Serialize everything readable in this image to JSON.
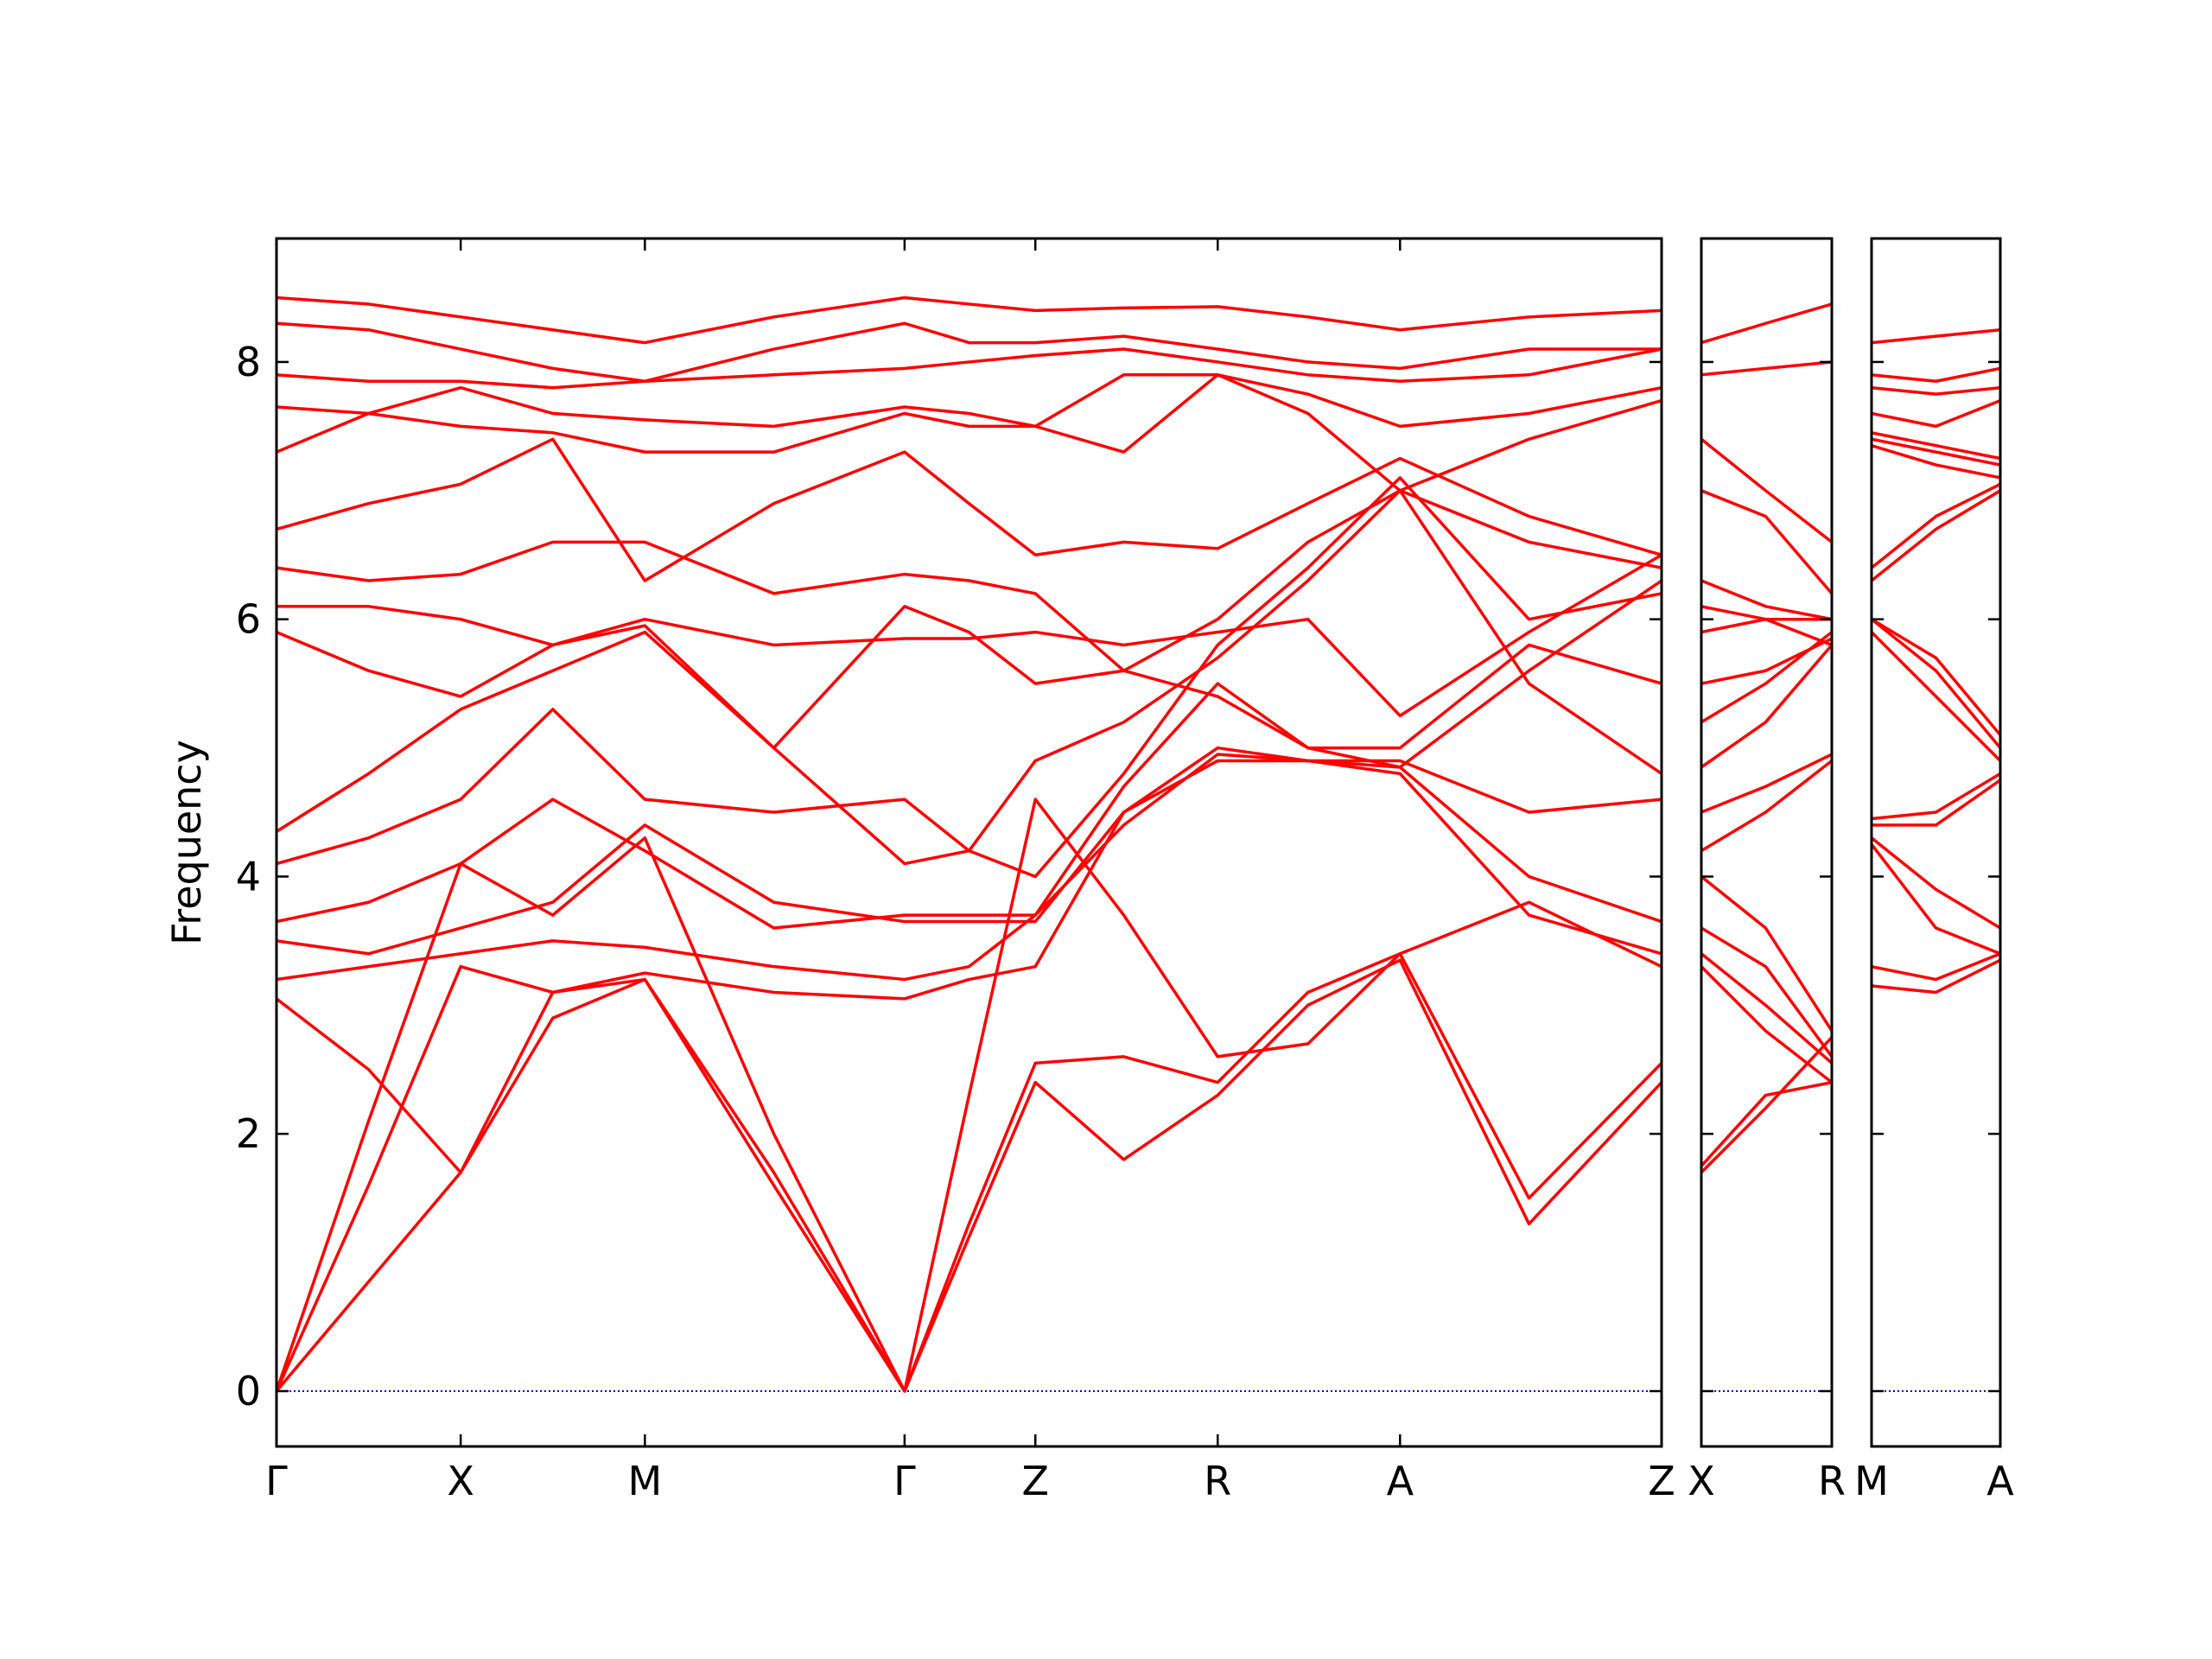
{
  "chart_data": [
    {
      "type": "line",
      "ylabel": "Frequency",
      "color": "#ff0000",
      "ylim": [
        -0.43,
        8.96
      ],
      "yticks": [
        0,
        2,
        4,
        6,
        8
      ],
      "ytick_labels": true,
      "xlim": [
        0,
        7.52
      ],
      "xticks": [
        {
          "value": 0,
          "label": "Γ"
        },
        {
          "value": 1.0,
          "label": "X"
        },
        {
          "value": 2.0,
          "label": "M"
        },
        {
          "value": 3.41,
          "label": "Γ"
        },
        {
          "value": 4.12,
          "label": "Z"
        },
        {
          "value": 5.11,
          "label": "R"
        },
        {
          "value": 6.1,
          "label": "A"
        },
        {
          "value": 7.52,
          "label": "Z"
        }
      ],
      "hline": {
        "value": 0,
        "color": "#0000cc"
      },
      "x": [
        0,
        0.5,
        1,
        1.5,
        2,
        2.7,
        3.41,
        3.76,
        4.12,
        4.6,
        5.11,
        5.6,
        6.1,
        6.8,
        7.52
      ],
      "series": [
        {
          "values": [
            0,
            0.85,
            1.7,
            2.9,
            3.2,
            1.6,
            0,
            1.2,
            2.4,
            1.8,
            2.3,
            3.0,
            3.35,
            1.3,
            2.4
          ]
        },
        {
          "values": [
            0,
            1.6,
            3.3,
            3.1,
            3.2,
            1.7,
            0,
            1.3,
            2.55,
            2.6,
            2.4,
            3.1,
            3.4,
            1.5,
            2.55
          ]
        },
        {
          "values": [
            0,
            2.1,
            4.1,
            3.7,
            4.3,
            2.0,
            0,
            2.3,
            4.6,
            3.7,
            2.6,
            2.7,
            3.4,
            3.8,
            3.3
          ]
        },
        {
          "values": [
            3.05,
            2.5,
            1.7,
            3.1,
            3.25,
            3.1,
            3.05,
            3.2,
            3.3,
            4.5,
            4.9,
            4.9,
            4.8,
            3.7,
            3.4
          ]
        },
        {
          "values": [
            3.2,
            3.3,
            3.4,
            3.5,
            3.45,
            3.3,
            3.2,
            3.3,
            3.7,
            4.4,
            4.95,
            4.9,
            4.85,
            4.0,
            3.65
          ]
        },
        {
          "values": [
            3.5,
            3.4,
            3.6,
            3.8,
            4.4,
            3.8,
            3.65,
            3.65,
            3.65,
            4.5,
            5.0,
            4.9,
            4.9,
            4.5,
            4.6
          ]
        },
        {
          "values": [
            3.65,
            3.8,
            4.1,
            4.6,
            4.2,
            3.6,
            3.7,
            3.7,
            3.7,
            4.7,
            5.5,
            5.0,
            5.0,
            5.8,
            5.5
          ]
        },
        {
          "values": [
            4.1,
            4.3,
            4.6,
            5.3,
            4.6,
            4.5,
            4.6,
            4.2,
            4.9,
            5.2,
            5.7,
            6.3,
            7.0,
            5.5,
            4.8
          ]
        },
        {
          "values": [
            4.35,
            4.8,
            5.3,
            5.6,
            5.9,
            5.0,
            4.1,
            4.2,
            4.0,
            4.8,
            5.8,
            6.4,
            7.1,
            6.0,
            6.2
          ]
        },
        {
          "values": [
            5.9,
            5.6,
            5.4,
            5.8,
            6.0,
            5.8,
            5.85,
            5.85,
            5.9,
            5.8,
            5.9,
            6.0,
            5.25,
            5.9,
            6.5
          ]
        },
        {
          "values": [
            6.1,
            6.1,
            6.0,
            5.8,
            5.95,
            5.0,
            6.1,
            5.9,
            5.5,
            5.6,
            5.4,
            5.0,
            4.85,
            5.6,
            6.3
          ]
        },
        {
          "values": [
            6.4,
            6.3,
            6.35,
            6.6,
            6.6,
            6.2,
            6.35,
            6.3,
            6.2,
            5.6,
            6.0,
            6.6,
            7.0,
            6.6,
            6.4
          ]
        },
        {
          "values": [
            6.7,
            6.9,
            7.05,
            7.4,
            6.3,
            6.9,
            7.3,
            6.9,
            6.5,
            6.6,
            6.55,
            6.9,
            7.25,
            6.8,
            6.5
          ]
        },
        {
          "values": [
            7.3,
            7.6,
            7.5,
            7.45,
            7.3,
            7.3,
            7.6,
            7.5,
            7.5,
            7.3,
            7.9,
            7.6,
            7.0,
            7.4,
            7.7
          ]
        },
        {
          "values": [
            7.65,
            7.6,
            7.8,
            7.6,
            7.55,
            7.5,
            7.65,
            7.6,
            7.5,
            7.9,
            7.9,
            7.75,
            7.5,
            7.6,
            7.8
          ]
        },
        {
          "values": [
            7.9,
            7.85,
            7.85,
            7.8,
            7.85,
            7.9,
            7.95,
            8.0,
            8.05,
            8.1,
            8.0,
            7.9,
            7.85,
            7.9,
            8.1
          ]
        },
        {
          "values": [
            8.3,
            8.25,
            8.1,
            7.95,
            7.85,
            8.1,
            8.3,
            8.15,
            8.15,
            8.2,
            8.1,
            8.0,
            7.95,
            8.1,
            8.1
          ]
        },
        {
          "values": [
            8.5,
            8.45,
            8.35,
            8.25,
            8.15,
            8.35,
            8.5,
            8.45,
            8.4,
            8.42,
            8.43,
            8.35,
            8.25,
            8.35,
            8.4
          ]
        }
      ]
    },
    {
      "type": "line",
      "color": "#ff0000",
      "ylim": [
        -0.43,
        8.96
      ],
      "yticks": [
        0,
        2,
        4,
        6,
        8
      ],
      "ytick_labels": false,
      "xlim": [
        0,
        0.71
      ],
      "xticks": [
        {
          "value": 0,
          "label": "X"
        },
        {
          "value": 0.71,
          "label": "R"
        }
      ],
      "hline": {
        "value": 0,
        "color": "#0000cc"
      },
      "x": [
        0,
        0.35,
        0.71
      ],
      "series": [
        {
          "values": [
            1.7,
            2.2,
            2.75
          ]
        },
        {
          "values": [
            1.75,
            2.3,
            2.4
          ]
        },
        {
          "values": [
            3.3,
            2.8,
            2.4
          ]
        },
        {
          "values": [
            3.4,
            3.0,
            2.55
          ]
        },
        {
          "values": [
            3.6,
            3.3,
            2.6
          ]
        },
        {
          "values": [
            4.0,
            3.6,
            2.8
          ]
        },
        {
          "values": [
            4.2,
            4.5,
            4.9
          ]
        },
        {
          "values": [
            4.5,
            4.7,
            4.95
          ]
        },
        {
          "values": [
            4.85,
            5.2,
            5.8
          ]
        },
        {
          "values": [
            5.2,
            5.5,
            5.9
          ]
        },
        {
          "values": [
            5.5,
            5.6,
            5.85
          ]
        },
        {
          "values": [
            5.9,
            6.0,
            6.0
          ]
        },
        {
          "values": [
            6.1,
            6.0,
            5.8
          ]
        },
        {
          "values": [
            6.3,
            6.1,
            6.0
          ]
        },
        {
          "values": [
            7.0,
            6.8,
            6.2
          ]
        },
        {
          "values": [
            7.4,
            7.0,
            6.6
          ]
        },
        {
          "values": [
            7.9,
            7.95,
            8.0
          ]
        },
        {
          "values": [
            8.15,
            8.3,
            8.45
          ]
        }
      ]
    },
    {
      "type": "line",
      "color": "#ff0000",
      "ylim": [
        -0.43,
        8.96
      ],
      "yticks": [
        0,
        2,
        4,
        6,
        8
      ],
      "ytick_labels": false,
      "xlim": [
        0,
        0.7
      ],
      "xticks": [
        {
          "value": 0,
          "label": "M"
        },
        {
          "value": 0.7,
          "label": "A"
        }
      ],
      "hline": {
        "value": 0,
        "color": "#0000cc"
      },
      "x": [
        0,
        0.35,
        0.7
      ],
      "series": [
        {
          "values": [
            3.15,
            3.1,
            3.35
          ]
        },
        {
          "values": [
            3.3,
            3.2,
            3.4
          ]
        },
        {
          "values": [
            4.25,
            3.6,
            3.4
          ]
        },
        {
          "values": [
            4.3,
            3.9,
            3.6
          ]
        },
        {
          "values": [
            4.4,
            4.4,
            4.75
          ]
        },
        {
          "values": [
            4.45,
            4.5,
            4.8
          ]
        },
        {
          "values": [
            5.9,
            5.4,
            4.9
          ]
        },
        {
          "values": [
            6.0,
            5.6,
            5.0
          ]
        },
        {
          "values": [
            6.0,
            5.7,
            5.1
          ]
        },
        {
          "values": [
            6.3,
            6.7,
            7.0
          ]
        },
        {
          "values": [
            6.4,
            6.8,
            7.05
          ]
        },
        {
          "values": [
            7.35,
            7.2,
            7.1
          ]
        },
        {
          "values": [
            7.4,
            7.3,
            7.2
          ]
        },
        {
          "values": [
            7.45,
            7.35,
            7.25
          ]
        },
        {
          "values": [
            7.6,
            7.5,
            7.7
          ]
        },
        {
          "values": [
            7.8,
            7.75,
            7.8
          ]
        },
        {
          "values": [
            7.9,
            7.85,
            7.95
          ]
        },
        {
          "values": [
            8.15,
            8.2,
            8.25
          ]
        }
      ]
    }
  ]
}
